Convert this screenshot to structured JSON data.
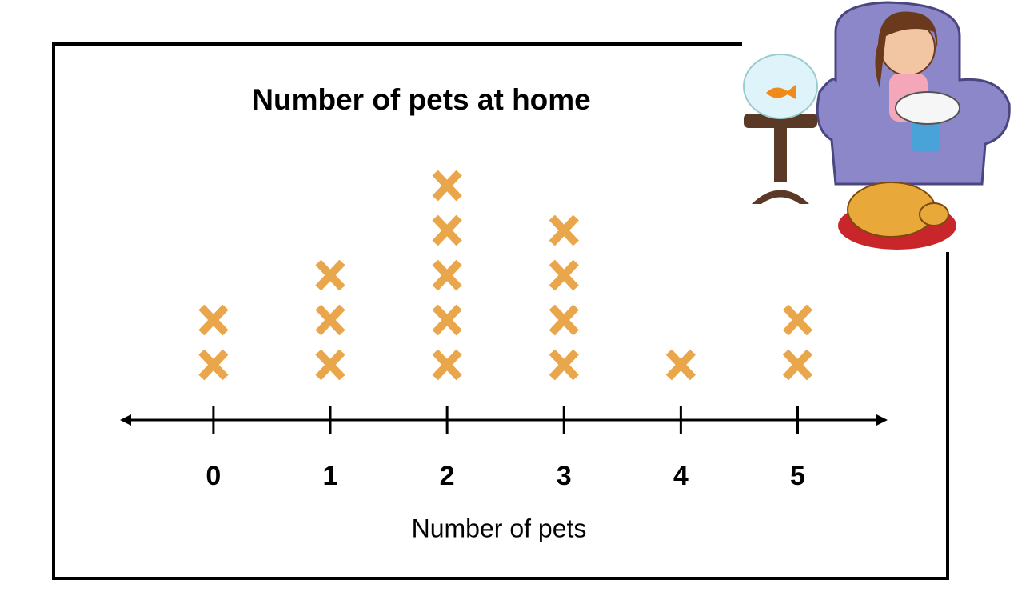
{
  "chart_data": {
    "type": "dot",
    "title": "Number of pets at home",
    "x_label": "Number of pets",
    "x": [
      0,
      1,
      2,
      3,
      4,
      5
    ],
    "values": [
      2,
      3,
      5,
      4,
      1,
      2
    ],
    "color": "#e9a64a",
    "xlim": [
      -0.8,
      5.77
    ],
    "xticks": [
      0,
      1,
      2,
      3,
      4,
      5
    ]
  }
}
